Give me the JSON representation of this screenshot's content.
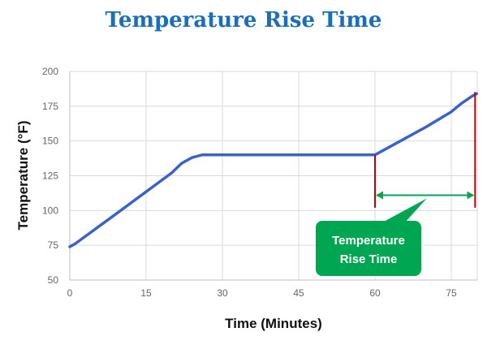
{
  "chart_data": {
    "type": "line",
    "title": "Temperature Rise Time",
    "xlabel": "Time (Minutes)",
    "ylabel": "Temperature (°F)",
    "xlim": [
      0,
      80
    ],
    "ylim": [
      50,
      200
    ],
    "xticks": [
      0,
      15,
      30,
      45,
      60,
      75
    ],
    "yticks": [
      50,
      75,
      100,
      125,
      150,
      175,
      200
    ],
    "grid": true,
    "series": [
      {
        "x": [
          0,
          1,
          10,
          20,
          22,
          24,
          26,
          30,
          45,
          60,
          65,
          70,
          75,
          77,
          79,
          80
        ],
        "y": [
          74,
          76,
          100,
          127,
          134,
          138,
          140,
          140,
          140,
          140,
          150,
          160,
          171,
          177,
          182,
          184
        ]
      }
    ],
    "annotation": {
      "label_line1": "Temperature",
      "label_line2": "Rise Time",
      "start_x": 60,
      "end_x": 80,
      "arrow_y": 111,
      "marker_top_y": 140,
      "marker_bottom_y": 102,
      "marker_color": "#c00000",
      "arrow_color": "#00a651",
      "callout_color": "#00a651"
    },
    "colors": {
      "line": "#3a62c8",
      "grid": "#d9d9d9",
      "axis": "#bfbfbf",
      "title": "#1a6fba"
    }
  }
}
